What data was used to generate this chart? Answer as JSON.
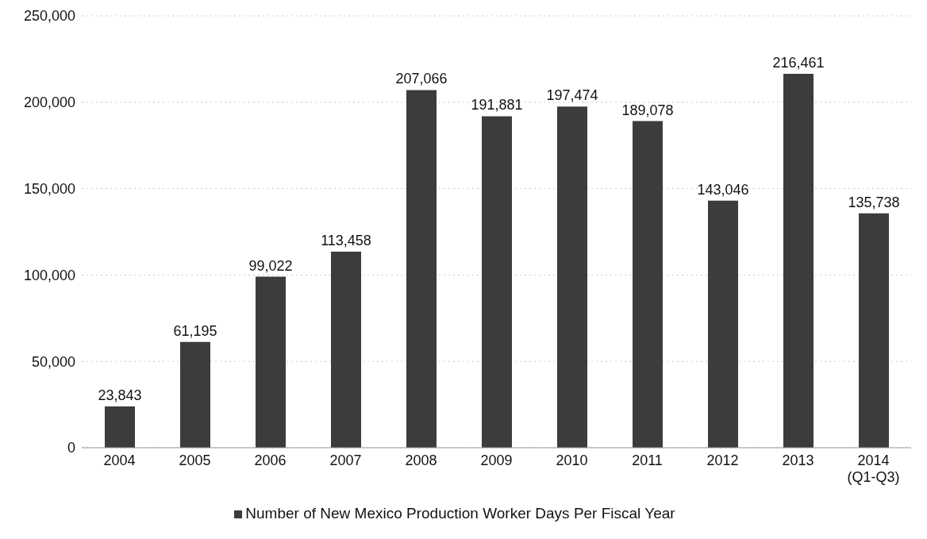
{
  "chart_data": {
    "type": "bar",
    "categories": [
      "2004",
      "2005",
      "2006",
      "2007",
      "2008",
      "2009",
      "2010",
      "2011",
      "2012",
      "2013",
      "2014\n(Q1-Q3)"
    ],
    "series": [
      {
        "name": "Number of New Mexico Production Worker Days Per Fiscal Year",
        "color": "#3c3c3c",
        "values": [
          23843,
          61195,
          99022,
          113458,
          207066,
          191881,
          197474,
          189078,
          143046,
          216461,
          135738
        ],
        "value_labels": [
          "23,843",
          "61,195",
          "99,022",
          "113,458",
          "207,066",
          "191,881",
          "197,474",
          "189,078",
          "143,046",
          "216,461",
          "135,738"
        ]
      }
    ],
    "ylim": [
      0,
      250000
    ],
    "yticks": [
      {
        "value": 0,
        "label": "0"
      },
      {
        "value": 50000,
        "label": "50,000"
      },
      {
        "value": 100000,
        "label": "100,000"
      },
      {
        "value": 150000,
        "label": "150,000"
      },
      {
        "value": 200000,
        "label": "200,000"
      },
      {
        "value": 250000,
        "label": "250,000"
      }
    ],
    "grid": "y",
    "legend": "bottom"
  }
}
